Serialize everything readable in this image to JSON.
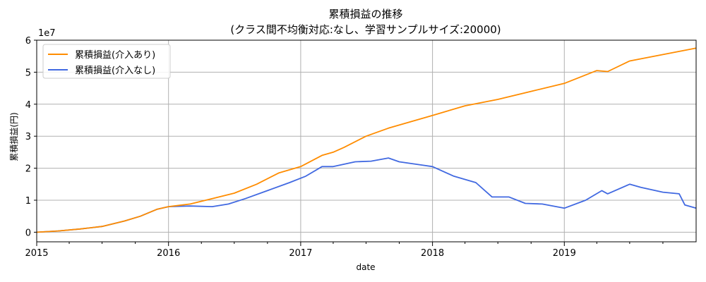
{
  "chart_data": {
    "type": "line",
    "title": "累積損益の推移",
    "subtitle": "(クラス間不均衡対応:なし、学習サンプルサイズ:20000)",
    "xlabel": "date",
    "ylabel": "累積損益(円)",
    "y_scale_label": "1e7",
    "y_unit_multiplier": 10000000,
    "xlim": [
      "2015-01-01",
      "2020-01-01"
    ],
    "ylim": [
      -0.3,
      6.0
    ],
    "x_ticks": [
      {
        "date": "2015-01-01",
        "label": "2015"
      },
      {
        "date": "2016-01-01",
        "label": "2016"
      },
      {
        "date": "2017-01-01",
        "label": "2017"
      },
      {
        "date": "2018-01-01",
        "label": "2018"
      },
      {
        "date": "2019-01-01",
        "label": "2019"
      }
    ],
    "y_ticks": [
      {
        "value": 0,
        "label": "0"
      },
      {
        "value": 1,
        "label": "1"
      },
      {
        "value": 2,
        "label": "2"
      },
      {
        "value": 3,
        "label": "3"
      },
      {
        "value": 4,
        "label": "4"
      },
      {
        "value": 5,
        "label": "5"
      },
      {
        "value": 6,
        "label": "6"
      }
    ],
    "grid": true,
    "legend_position": "top-left",
    "series": [
      {
        "name": "累積損益(介入あり)",
        "color": "#ff8c00",
        "points": [
          [
            "2015-01-01",
            0.0
          ],
          [
            "2015-03-01",
            0.04
          ],
          [
            "2015-05-01",
            0.1
          ],
          [
            "2015-07-01",
            0.18
          ],
          [
            "2015-09-01",
            0.35
          ],
          [
            "2015-10-15",
            0.5
          ],
          [
            "2015-12-01",
            0.72
          ],
          [
            "2016-01-01",
            0.8
          ],
          [
            "2016-02-01",
            0.84
          ],
          [
            "2016-03-01",
            0.88
          ],
          [
            "2016-05-01",
            1.05
          ],
          [
            "2016-07-01",
            1.22
          ],
          [
            "2016-09-01",
            1.5
          ],
          [
            "2016-11-01",
            1.85
          ],
          [
            "2017-01-01",
            2.05
          ],
          [
            "2017-03-01",
            2.4
          ],
          [
            "2017-04-01",
            2.5
          ],
          [
            "2017-05-01",
            2.65
          ],
          [
            "2017-07-01",
            3.0
          ],
          [
            "2017-09-01",
            3.25
          ],
          [
            "2017-11-01",
            3.45
          ],
          [
            "2018-01-01",
            3.65
          ],
          [
            "2018-04-01",
            3.95
          ],
          [
            "2018-07-01",
            4.15
          ],
          [
            "2018-10-01",
            4.4
          ],
          [
            "2019-01-01",
            4.65
          ],
          [
            "2019-04-01",
            5.05
          ],
          [
            "2019-05-01",
            5.02
          ],
          [
            "2019-07-01",
            5.35
          ],
          [
            "2019-10-01",
            5.55
          ],
          [
            "2020-01-01",
            5.75
          ]
        ]
      },
      {
        "name": "累積損益(介入なし)",
        "color": "#4169e1",
        "points": [
          [
            "2015-01-01",
            0.0
          ],
          [
            "2015-03-01",
            0.04
          ],
          [
            "2015-05-01",
            0.1
          ],
          [
            "2015-07-01",
            0.18
          ],
          [
            "2015-09-01",
            0.35
          ],
          [
            "2015-10-15",
            0.5
          ],
          [
            "2015-12-01",
            0.72
          ],
          [
            "2016-01-01",
            0.8
          ],
          [
            "2016-03-01",
            0.82
          ],
          [
            "2016-05-01",
            0.8
          ],
          [
            "2016-06-15",
            0.88
          ],
          [
            "2016-08-01",
            1.05
          ],
          [
            "2016-10-01",
            1.3
          ],
          [
            "2016-12-01",
            1.55
          ],
          [
            "2017-01-15",
            1.75
          ],
          [
            "2017-03-01",
            2.05
          ],
          [
            "2017-04-01",
            2.05
          ],
          [
            "2017-06-01",
            2.2
          ],
          [
            "2017-07-15",
            2.22
          ],
          [
            "2017-09-01",
            2.32
          ],
          [
            "2017-10-01",
            2.2
          ],
          [
            "2017-12-01",
            2.1
          ],
          [
            "2018-01-01",
            2.05
          ],
          [
            "2018-03-01",
            1.75
          ],
          [
            "2018-05-01",
            1.55
          ],
          [
            "2018-06-15",
            1.1
          ],
          [
            "2018-08-01",
            1.1
          ],
          [
            "2018-09-15",
            0.9
          ],
          [
            "2018-11-01",
            0.88
          ],
          [
            "2019-01-01",
            0.75
          ],
          [
            "2019-03-01",
            1.0
          ],
          [
            "2019-04-15",
            1.3
          ],
          [
            "2019-05-01",
            1.2
          ],
          [
            "2019-07-01",
            1.5
          ],
          [
            "2019-08-01",
            1.4
          ],
          [
            "2019-10-01",
            1.25
          ],
          [
            "2019-11-15",
            1.2
          ],
          [
            "2019-12-01",
            0.85
          ],
          [
            "2020-01-01",
            0.75
          ]
        ]
      }
    ]
  }
}
